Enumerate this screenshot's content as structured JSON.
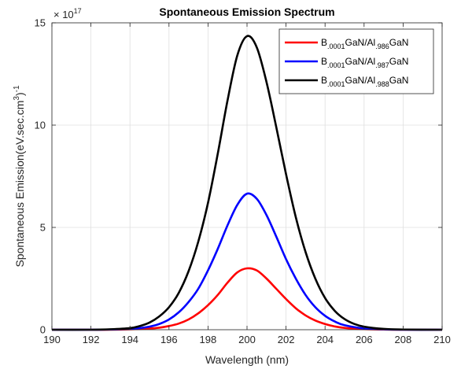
{
  "chart_data": {
    "type": "line",
    "title": "Spontaneous Emission Spectrum",
    "xlabel": "Wavelength (nm)",
    "ylabel_main": "Spontaneous Emission(eV.sec.cm",
    "ylabel_sup3": "3",
    "ylabel_close": ")",
    "ylabel_supm1": "-1",
    "y_exponent_base": "× 10",
    "y_exponent_power": "17",
    "xlim": [
      190,
      210
    ],
    "ylim": [
      0,
      15
    ],
    "xticks": [
      "190",
      "192",
      "194",
      "196",
      "198",
      "200",
      "202",
      "204",
      "206",
      "208",
      "210"
    ],
    "yticks": [
      "0",
      "5",
      "10",
      "15"
    ],
    "grid": true,
    "legend_placement": "top-right",
    "series": [
      {
        "name_parts": [
          "B",
          ".0001",
          "GaN/Al",
          ".986",
          "GaN"
        ],
        "color": "#ff0000",
        "x": [
          190,
          192,
          193,
          194,
          195,
          195.5,
          196,
          196.5,
          197,
          197.5,
          198,
          198.5,
          199,
          199.5,
          200,
          200.5,
          201,
          201.5,
          202,
          202.5,
          203,
          203.5,
          204,
          204.5,
          205,
          206,
          207,
          208,
          210
        ],
        "y": [
          0,
          0,
          0,
          0.02,
          0.06,
          0.1,
          0.18,
          0.3,
          0.5,
          0.8,
          1.2,
          1.7,
          2.3,
          2.8,
          3.0,
          2.9,
          2.5,
          2.0,
          1.5,
          1.05,
          0.7,
          0.45,
          0.28,
          0.16,
          0.09,
          0.03,
          0.01,
          0,
          0
        ]
      },
      {
        "name_parts": [
          "B",
          ".0001",
          "GaN/Al",
          ".987",
          "GaN"
        ],
        "color": "#0000ff",
        "x": [
          190,
          192,
          193,
          194,
          194.5,
          195,
          195.5,
          196,
          196.5,
          197,
          197.5,
          198,
          198.5,
          199,
          199.5,
          200,
          200.5,
          201,
          201.5,
          202,
          202.5,
          203,
          203.5,
          204,
          204.5,
          205,
          206,
          207,
          208,
          210
        ],
        "y": [
          0,
          0,
          0.01,
          0.04,
          0.08,
          0.15,
          0.28,
          0.5,
          0.85,
          1.35,
          2.0,
          2.9,
          3.95,
          5.1,
          6.1,
          6.65,
          6.4,
          5.6,
          4.55,
          3.45,
          2.5,
          1.7,
          1.1,
          0.68,
          0.4,
          0.22,
          0.06,
          0.02,
          0,
          0
        ]
      },
      {
        "name_parts": [
          "B",
          ".0001",
          "GaN/Al",
          ".988",
          "GaN"
        ],
        "color": "#000000",
        "x": [
          190,
          192,
          193,
          194,
          194.5,
          195,
          195.5,
          196,
          196.5,
          197,
          197.5,
          198,
          198.5,
          199,
          199.5,
          200,
          200.5,
          201,
          201.5,
          202,
          202.5,
          203,
          203.5,
          204,
          204.5,
          205,
          205.5,
          206,
          207,
          208,
          210
        ],
        "y": [
          0,
          0,
          0.02,
          0.08,
          0.18,
          0.35,
          0.65,
          1.1,
          1.8,
          2.85,
          4.3,
          6.2,
          8.6,
          11.2,
          13.4,
          14.35,
          13.8,
          12.1,
          9.9,
          7.6,
          5.5,
          3.8,
          2.5,
          1.55,
          0.92,
          0.52,
          0.28,
          0.15,
          0.04,
          0.01,
          0
        ]
      }
    ]
  }
}
